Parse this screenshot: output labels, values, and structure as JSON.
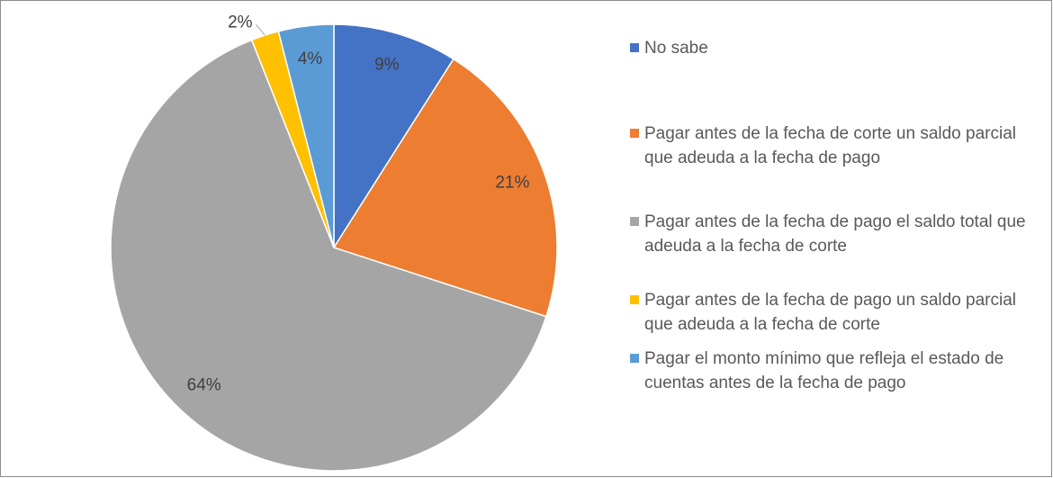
{
  "chart_data": {
    "type": "pie",
    "categories": [
      "No sabe",
      "Pagar antes de la fecha de corte un saldo parcial que adeuda a la fecha de pago",
      "Pagar antes de la fecha de pago el saldo total que adeuda a la fecha de corte",
      "Pagar antes de la fecha de pago un saldo parcial que adeuda a la fecha de corte",
      "Pagar el monto mínimo que refleja el estado de cuentas antes de la fecha de pago"
    ],
    "values": [
      9,
      21,
      64,
      2,
      4
    ],
    "value_labels": [
      "9%",
      "21%",
      "64%",
      "2%",
      "4%"
    ],
    "colors": [
      "#4472c4",
      "#ed7d31",
      "#a5a5a5",
      "#ffc000",
      "#5b9bd5"
    ],
    "legend": "right"
  }
}
